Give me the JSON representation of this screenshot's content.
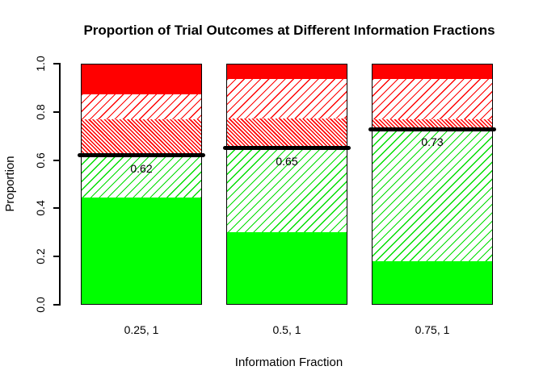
{
  "figure": {
    "title": "Proportion of Trial Outcomes at Different Information Fractions",
    "xlabel": "Information Fraction",
    "ylabel": "Proportion"
  },
  "chart_data": {
    "type": "bar",
    "stacked": true,
    "title": "Proportion of Trial Outcomes at Different Information Fractions",
    "xlabel": "Information Fraction",
    "ylabel": "Proportion",
    "ylim": [
      0,
      1
    ],
    "grid": false,
    "legend": "none",
    "background": "#FFFFFF",
    "yticks": [
      0.0,
      0.2,
      0.4,
      0.6,
      0.8,
      1.0
    ],
    "ytick_labels": [
      "0.0",
      "0.2",
      "0.4",
      "0.6",
      "0.8",
      "1.0"
    ],
    "categories": [
      "0.25, 1",
      "0.5, 1",
      "0.75, 1"
    ],
    "series": [
      {
        "name": "solid-green",
        "pattern": "green-solid",
        "color": "#00FF00",
        "hatch": "none",
        "values": [
          0.445,
          0.3,
          0.18
        ]
      },
      {
        "name": "green-hatch",
        "pattern": "green-hatch",
        "color": "#00DD00",
        "hatch": "diagonal-up",
        "values": [
          0.175,
          0.35,
          0.55
        ]
      },
      {
        "name": "red-dense-hatch",
        "pattern": "red-dense-hatch",
        "color": "#FF0000",
        "hatch": "dense-diagonal-down",
        "values": [
          0.15,
          0.125,
          0.04
        ]
      },
      {
        "name": "red-hatch",
        "pattern": "red-hatch",
        "color": "#FF0000",
        "hatch": "diagonal-up",
        "values": [
          0.105,
          0.165,
          0.17
        ]
      },
      {
        "name": "solid-red",
        "pattern": "red-solid",
        "color": "#FF0000",
        "hatch": "none",
        "values": [
          0.125,
          0.06,
          0.06
        ]
      }
    ],
    "threshold_lines": [
      {
        "category": "0.25, 1",
        "value": 0.62,
        "label": "0.62",
        "color": "#000000"
      },
      {
        "category": "0.5, 1",
        "value": 0.65,
        "label": "0.65",
        "color": "#000000"
      },
      {
        "category": "0.75, 1",
        "value": 0.73,
        "label": "0.73",
        "color": "#000000"
      }
    ],
    "colors": {
      "solid_green": "#00FF00",
      "solid_red": "#FF0000",
      "hatch_green": "#00DD00",
      "hatch_red": "#FF0000",
      "threshold_line": "#000000",
      "axis": "#000000",
      "text": "#000000",
      "background": "#FFFFFF"
    }
  }
}
